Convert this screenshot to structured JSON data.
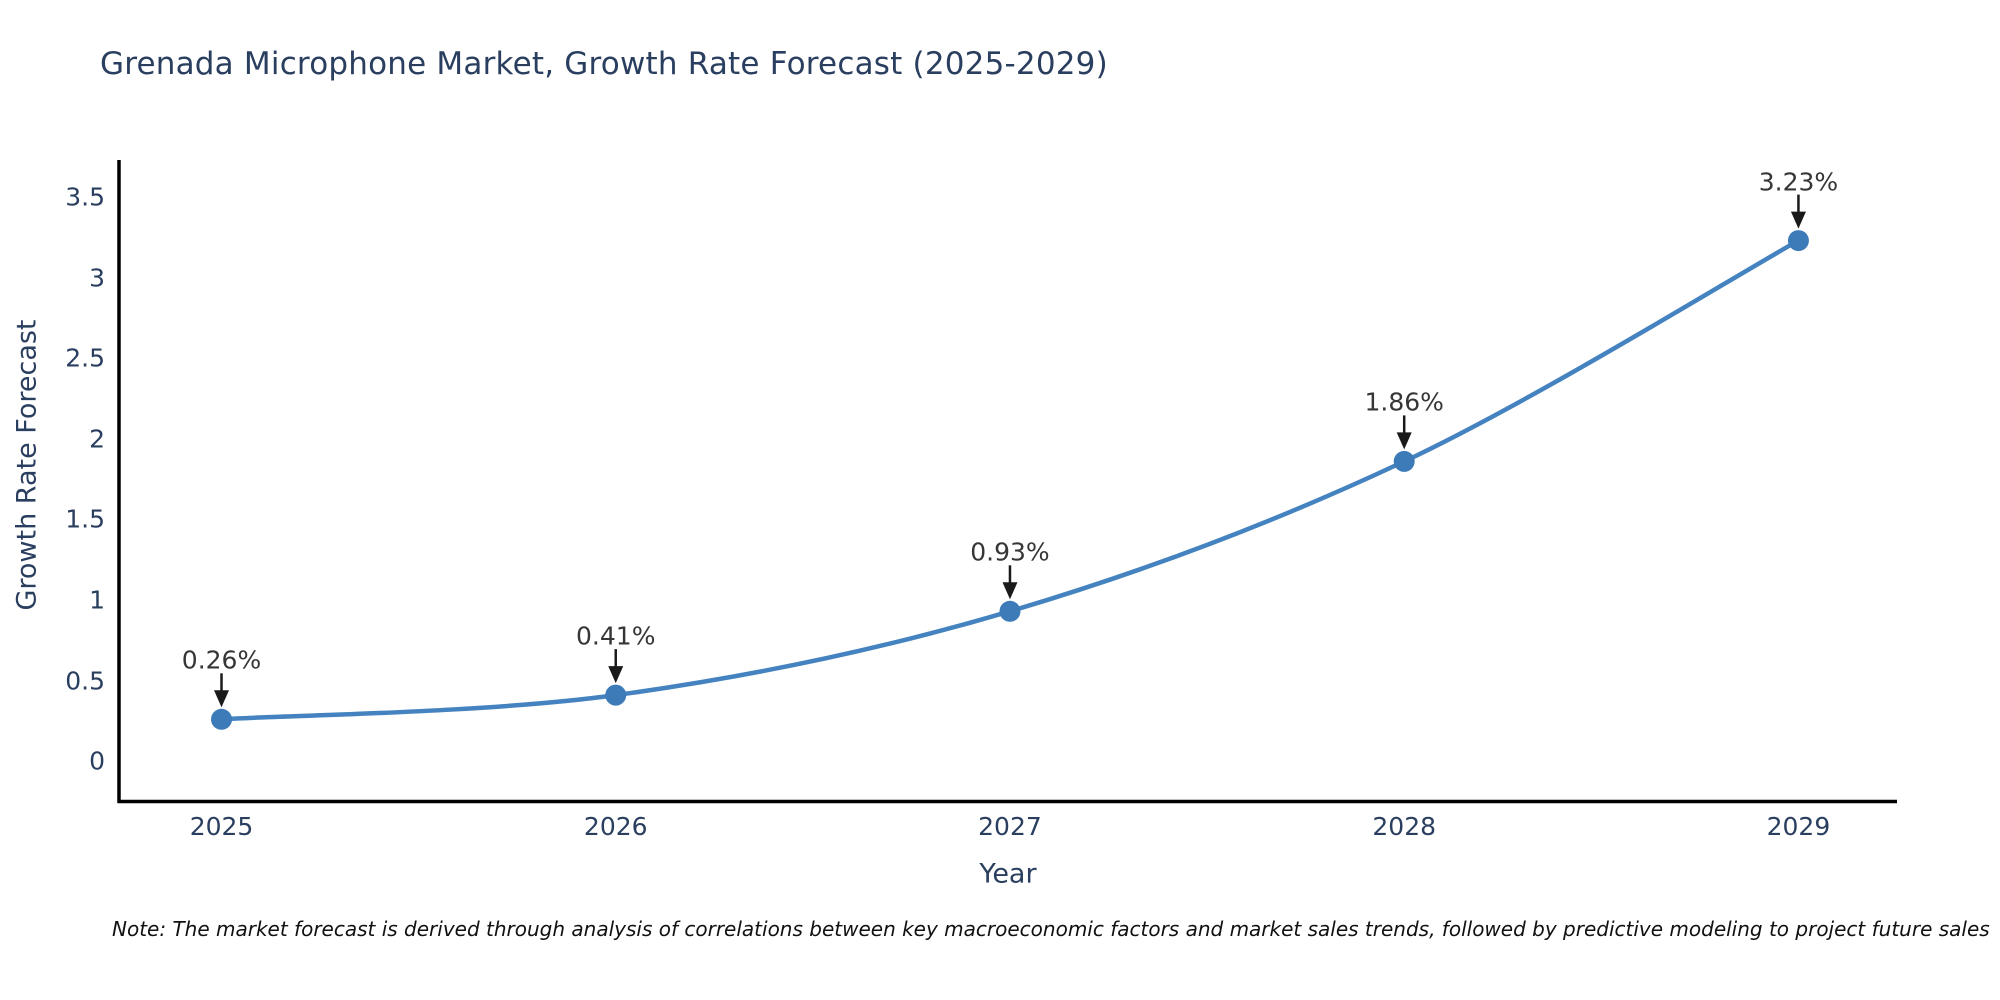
{
  "chart_data": {
    "type": "line",
    "title": "Grenada Microphone Market, Growth Rate Forecast (2025-2029)",
    "xlabel": "Year",
    "ylabel": "Growth Rate Forecast",
    "x": [
      2025,
      2026,
      2027,
      2028,
      2029
    ],
    "x_tick_labels": [
      "2025",
      "2026",
      "2027",
      "2028",
      "2029"
    ],
    "values": [
      0.26,
      0.41,
      0.93,
      1.86,
      3.23
    ],
    "point_labels": [
      "0.26%",
      "0.41%",
      "0.93%",
      "1.86%",
      "3.23%"
    ],
    "y_tick_labels": [
      "0",
      "0.5",
      "1",
      "1.5",
      "2",
      "2.5",
      "3",
      "3.5"
    ],
    "xlim": [
      2024.74,
      2029.25
    ],
    "ylim": [
      -0.25,
      3.73
    ],
    "line_shape": "spline",
    "grid": false,
    "legend_position": "none",
    "line_color": "#4483c0",
    "marker_color": "#3c7ab8",
    "axis_color": "#010101",
    "arrow_color": "#1a1a1a",
    "text_color": "#2a3f5f",
    "annotation_text_color": "#363636"
  },
  "footnote": "Note: The market forecast is derived through analysis of correlations between key macroeconomic factors and market sales trends, followed by predictive modeling to project future sales"
}
